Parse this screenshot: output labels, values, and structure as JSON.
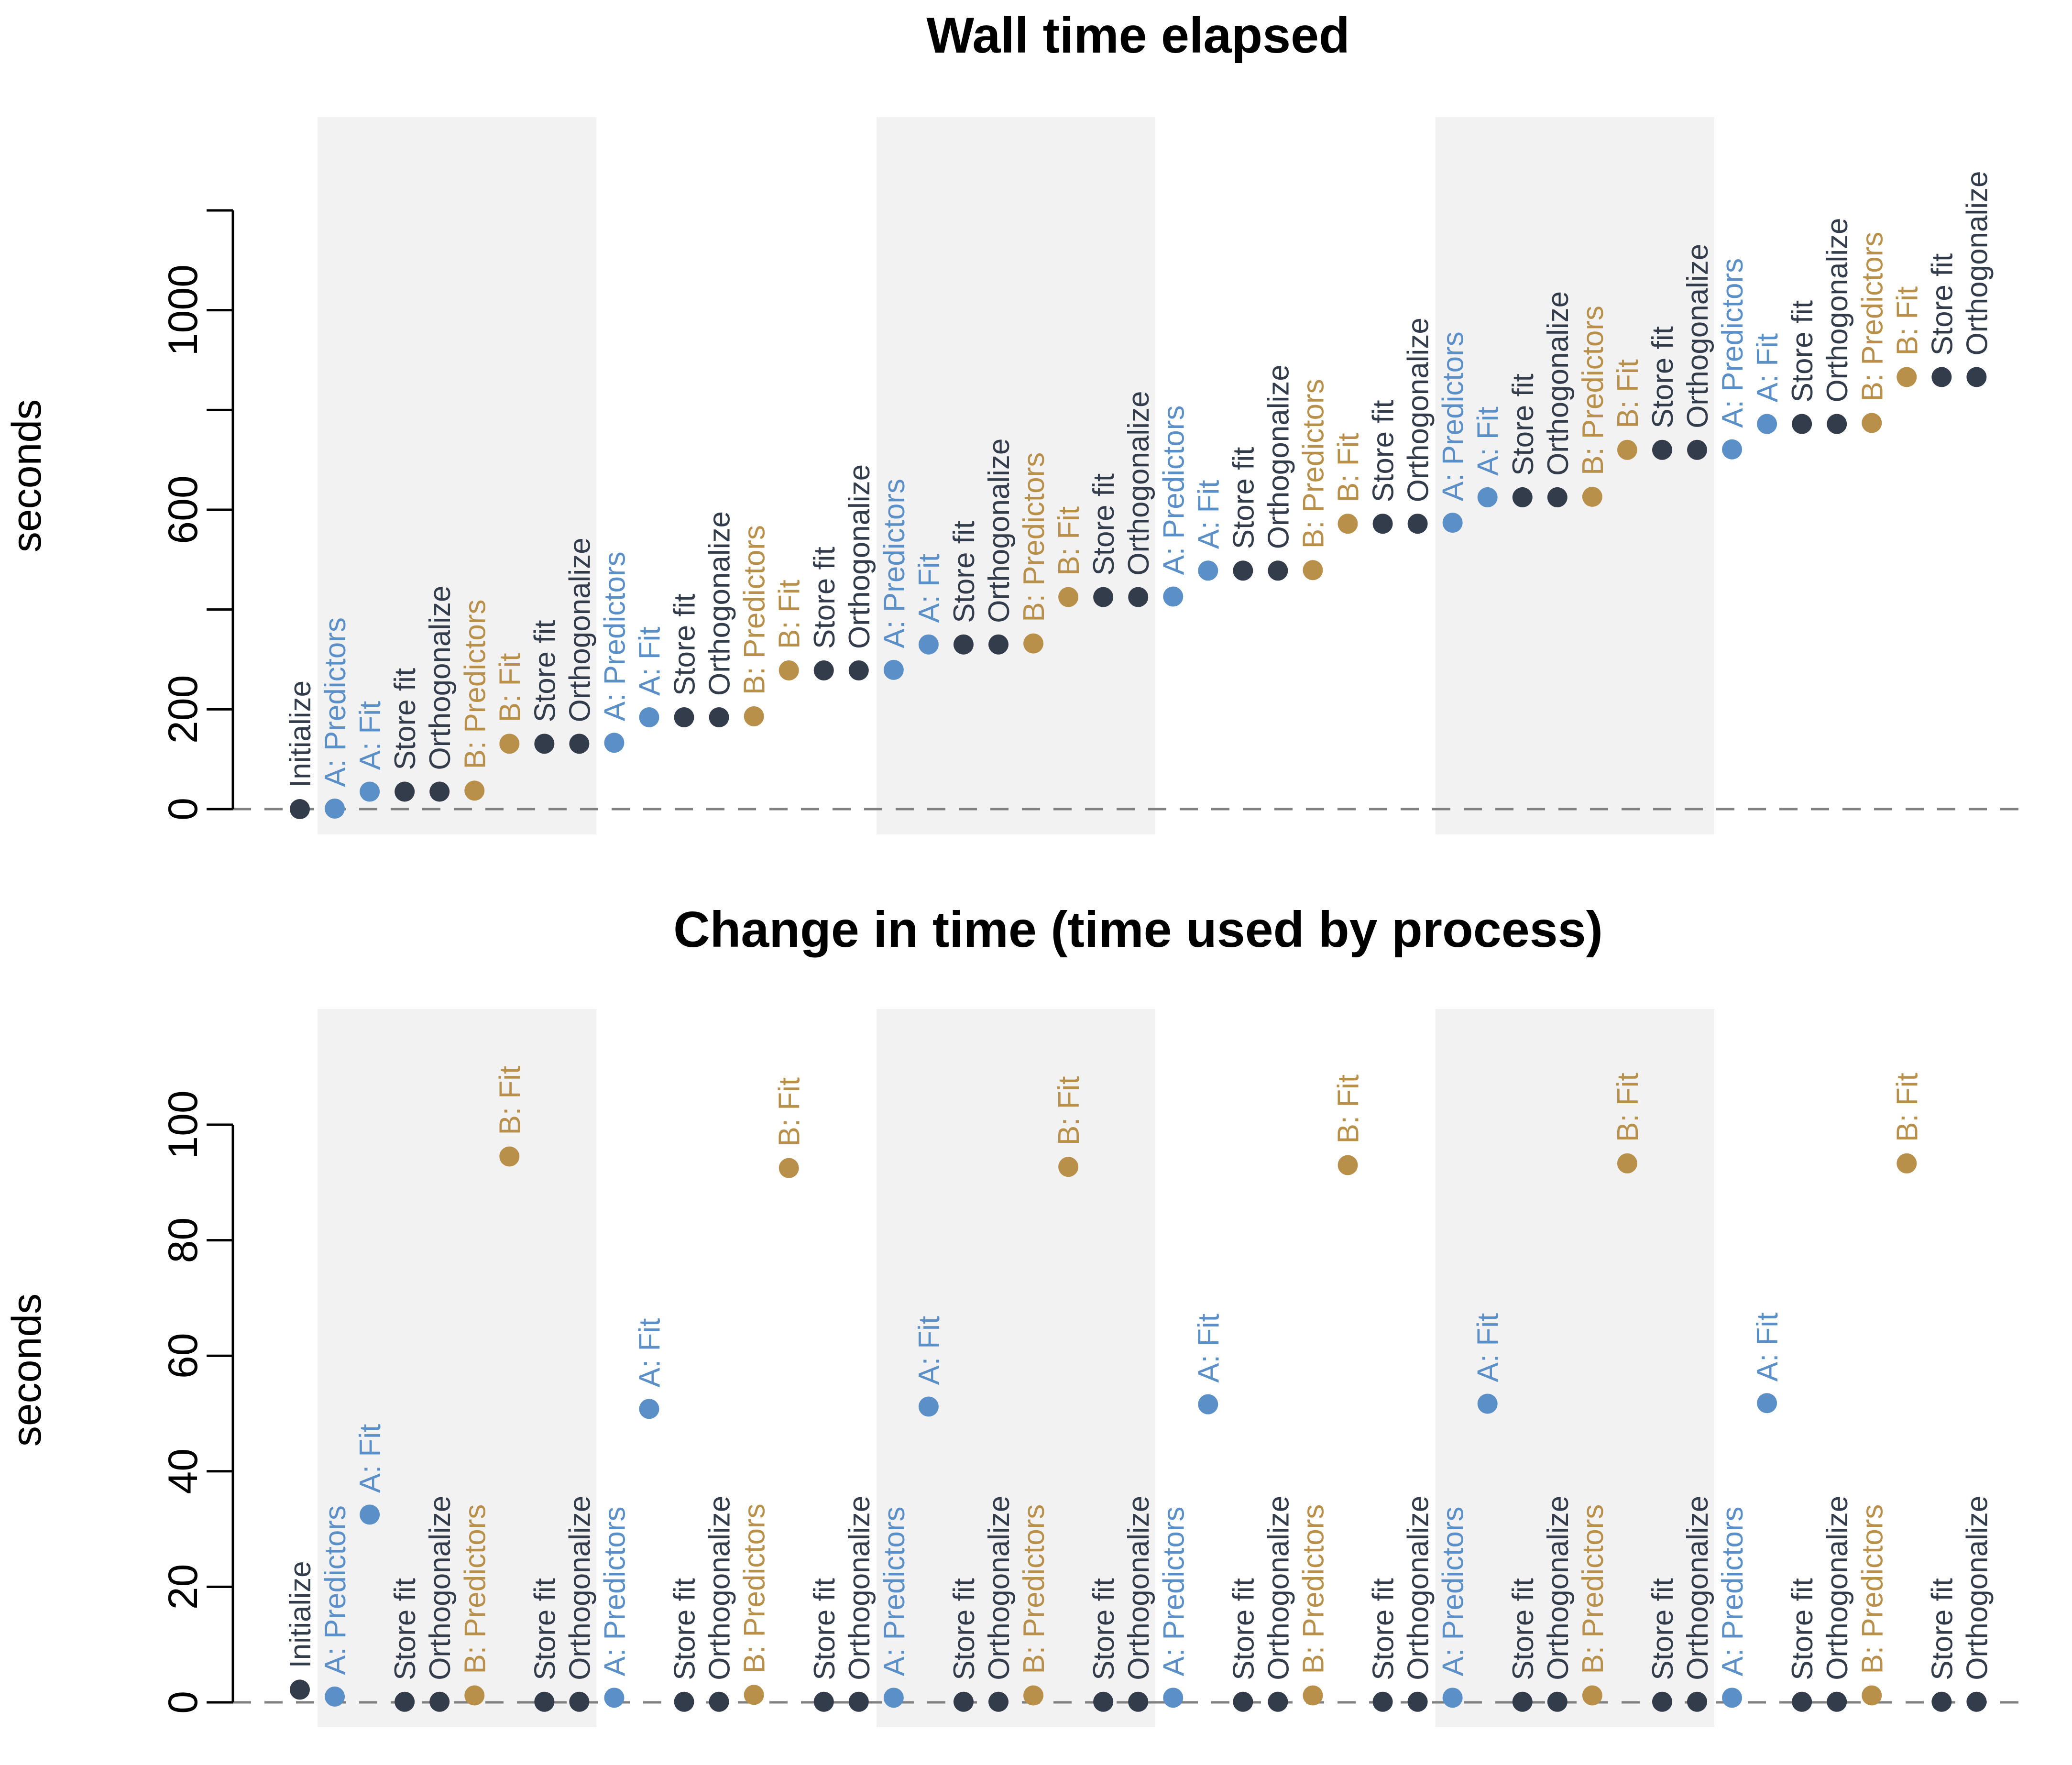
{
  "colors": {
    "dark": "#333c4a",
    "blue": "#5b8fc7",
    "gold": "#b8904a",
    "band": "#f2f2f2",
    "zero_line": "#808080"
  },
  "chart_data": [
    {
      "type": "scatter",
      "title": "Wall time elapsed",
      "ylabel": "seconds",
      "ylim": [
        0,
        1200
      ],
      "yticks": [
        0,
        200,
        600,
        1000
      ],
      "ytick_labels": [
        "0",
        "200",
        "600",
        "1000"
      ],
      "reference_line": 0,
      "shaded_bands": [
        [
          1,
          8
        ],
        [
          17,
          24
        ],
        [
          33,
          40
        ]
      ],
      "points": [
        {
          "label": "Initialize",
          "group": "dark",
          "y": 0
        },
        {
          "label": "A: Predictors",
          "group": "blue",
          "y": 1
        },
        {
          "label": "A: Fit",
          "group": "blue",
          "y": 35
        },
        {
          "label": "Store fit",
          "group": "dark",
          "y": 35
        },
        {
          "label": "Orthogonalize",
          "group": "dark",
          "y": 35
        },
        {
          "label": "B: Predictors",
          "group": "gold",
          "y": 37
        },
        {
          "label": "B: Fit",
          "group": "gold",
          "y": 131
        },
        {
          "label": "Store fit",
          "group": "dark",
          "y": 131
        },
        {
          "label": "Orthogonalize",
          "group": "dark",
          "y": 131
        },
        {
          "label": "A: Predictors",
          "group": "blue",
          "y": 133
        },
        {
          "label": "A: Fit",
          "group": "blue",
          "y": 184
        },
        {
          "label": "Store fit",
          "group": "dark",
          "y": 184
        },
        {
          "label": "Orthogonalize",
          "group": "dark",
          "y": 184
        },
        {
          "label": "B: Predictors",
          "group": "gold",
          "y": 186
        },
        {
          "label": "B: Fit",
          "group": "gold",
          "y": 278
        },
        {
          "label": "Store fit",
          "group": "dark",
          "y": 278
        },
        {
          "label": "Orthogonalize",
          "group": "dark",
          "y": 278
        },
        {
          "label": "A: Predictors",
          "group": "blue",
          "y": 279
        },
        {
          "label": "A: Fit",
          "group": "blue",
          "y": 330
        },
        {
          "label": "Store fit",
          "group": "dark",
          "y": 330
        },
        {
          "label": "Orthogonalize",
          "group": "dark",
          "y": 330
        },
        {
          "label": "B: Predictors",
          "group": "gold",
          "y": 332
        },
        {
          "label": "B: Fit",
          "group": "gold",
          "y": 425
        },
        {
          "label": "Store fit",
          "group": "dark",
          "y": 425
        },
        {
          "label": "Orthogonalize",
          "group": "dark",
          "y": 425
        },
        {
          "label": "A: Predictors",
          "group": "blue",
          "y": 426
        },
        {
          "label": "A: Fit",
          "group": "blue",
          "y": 478
        },
        {
          "label": "Store fit",
          "group": "dark",
          "y": 478
        },
        {
          "label": "Orthogonalize",
          "group": "dark",
          "y": 478
        },
        {
          "label": "B: Predictors",
          "group": "gold",
          "y": 479
        },
        {
          "label": "B: Fit",
          "group": "gold",
          "y": 572
        },
        {
          "label": "Store fit",
          "group": "dark",
          "y": 572
        },
        {
          "label": "Orthogonalize",
          "group": "dark",
          "y": 572
        },
        {
          "label": "A: Predictors",
          "group": "blue",
          "y": 574
        },
        {
          "label": "A: Fit",
          "group": "blue",
          "y": 625
        },
        {
          "label": "Store fit",
          "group": "dark",
          "y": 625
        },
        {
          "label": "Orthogonalize",
          "group": "dark",
          "y": 625
        },
        {
          "label": "B: Predictors",
          "group": "gold",
          "y": 626
        },
        {
          "label": "B: Fit",
          "group": "gold",
          "y": 720
        },
        {
          "label": "Store fit",
          "group": "dark",
          "y": 720
        },
        {
          "label": "Orthogonalize",
          "group": "dark",
          "y": 720
        },
        {
          "label": "A: Predictors",
          "group": "blue",
          "y": 721
        },
        {
          "label": "A: Fit",
          "group": "blue",
          "y": 772
        },
        {
          "label": "Store fit",
          "group": "dark",
          "y": 772
        },
        {
          "label": "Orthogonalize",
          "group": "dark",
          "y": 772
        },
        {
          "label": "B: Predictors",
          "group": "gold",
          "y": 774
        },
        {
          "label": "B: Fit",
          "group": "gold",
          "y": 866
        },
        {
          "label": "Store fit",
          "group": "dark",
          "y": 866
        },
        {
          "label": "Orthogonalize",
          "group": "dark",
          "y": 866
        }
      ]
    },
    {
      "type": "scatter",
      "title": "Change in time (time used by process)",
      "ylabel": "seconds",
      "ylim": [
        0,
        100
      ],
      "yticks": [
        0,
        20,
        40,
        60,
        80,
        100
      ],
      "ytick_labels": [
        "0",
        "20",
        "40",
        "60",
        "80",
        "100"
      ],
      "reference_line": 0,
      "shaded_bands": [
        [
          1,
          8
        ],
        [
          17,
          24
        ],
        [
          33,
          40
        ]
      ],
      "points": [
        {
          "label": "Initialize",
          "group": "dark",
          "y": 2.2
        },
        {
          "label": "A: Predictors",
          "group": "blue",
          "y": 1.0
        },
        {
          "label": "A: Fit",
          "group": "blue",
          "y": 32.5
        },
        {
          "label": "Store fit",
          "group": "dark",
          "y": 0.1
        },
        {
          "label": "Orthogonalize",
          "group": "dark",
          "y": 0.1
        },
        {
          "label": "B: Predictors",
          "group": "gold",
          "y": 1.2
        },
        {
          "label": "B: Fit",
          "group": "gold",
          "y": 94.5
        },
        {
          "label": "Store fit",
          "group": "dark",
          "y": 0.1
        },
        {
          "label": "Orthogonalize",
          "group": "dark",
          "y": 0.1
        },
        {
          "label": "A: Predictors",
          "group": "blue",
          "y": 0.8
        },
        {
          "label": "A: Fit",
          "group": "blue",
          "y": 50.8
        },
        {
          "label": "Store fit",
          "group": "dark",
          "y": 0.1
        },
        {
          "label": "Orthogonalize",
          "group": "dark",
          "y": 0.1
        },
        {
          "label": "B: Predictors",
          "group": "gold",
          "y": 1.3
        },
        {
          "label": "B: Fit",
          "group": "gold",
          "y": 92.5
        },
        {
          "label": "Store fit",
          "group": "dark",
          "y": 0.1
        },
        {
          "label": "Orthogonalize",
          "group": "dark",
          "y": 0.1
        },
        {
          "label": "A: Predictors",
          "group": "blue",
          "y": 0.8
        },
        {
          "label": "A: Fit",
          "group": "blue",
          "y": 51.2
        },
        {
          "label": "Store fit",
          "group": "dark",
          "y": 0.1
        },
        {
          "label": "Orthogonalize",
          "group": "dark",
          "y": 0.1
        },
        {
          "label": "B: Predictors",
          "group": "gold",
          "y": 1.2
        },
        {
          "label": "B: Fit",
          "group": "gold",
          "y": 92.7
        },
        {
          "label": "Store fit",
          "group": "dark",
          "y": 0.1
        },
        {
          "label": "Orthogonalize",
          "group": "dark",
          "y": 0.1
        },
        {
          "label": "A: Predictors",
          "group": "blue",
          "y": 0.8
        },
        {
          "label": "A: Fit",
          "group": "blue",
          "y": 51.6
        },
        {
          "label": "Store fit",
          "group": "dark",
          "y": 0.1
        },
        {
          "label": "Orthogonalize",
          "group": "dark",
          "y": 0.1
        },
        {
          "label": "B: Predictors",
          "group": "gold",
          "y": 1.2
        },
        {
          "label": "B: Fit",
          "group": "gold",
          "y": 93.0
        },
        {
          "label": "Store fit",
          "group": "dark",
          "y": 0.1
        },
        {
          "label": "Orthogonalize",
          "group": "dark",
          "y": 0.1
        },
        {
          "label": "A: Predictors",
          "group": "blue",
          "y": 0.8
        },
        {
          "label": "A: Fit",
          "group": "blue",
          "y": 51.7
        },
        {
          "label": "Store fit",
          "group": "dark",
          "y": 0.1
        },
        {
          "label": "Orthogonalize",
          "group": "dark",
          "y": 0.1
        },
        {
          "label": "B: Predictors",
          "group": "gold",
          "y": 1.2
        },
        {
          "label": "B: Fit",
          "group": "gold",
          "y": 93.3
        },
        {
          "label": "Store fit",
          "group": "dark",
          "y": 0.1
        },
        {
          "label": "Orthogonalize",
          "group": "dark",
          "y": 0.1
        },
        {
          "label": "A: Predictors",
          "group": "blue",
          "y": 0.8
        },
        {
          "label": "A: Fit",
          "group": "blue",
          "y": 51.8
        },
        {
          "label": "Store fit",
          "group": "dark",
          "y": 0.1
        },
        {
          "label": "Orthogonalize",
          "group": "dark",
          "y": 0.1
        },
        {
          "label": "B: Predictors",
          "group": "gold",
          "y": 1.2
        },
        {
          "label": "B: Fit",
          "group": "gold",
          "y": 93.3
        },
        {
          "label": "Store fit",
          "group": "dark",
          "y": 0.1
        },
        {
          "label": "Orthogonalize",
          "group": "dark",
          "y": 0.1
        }
      ]
    }
  ]
}
